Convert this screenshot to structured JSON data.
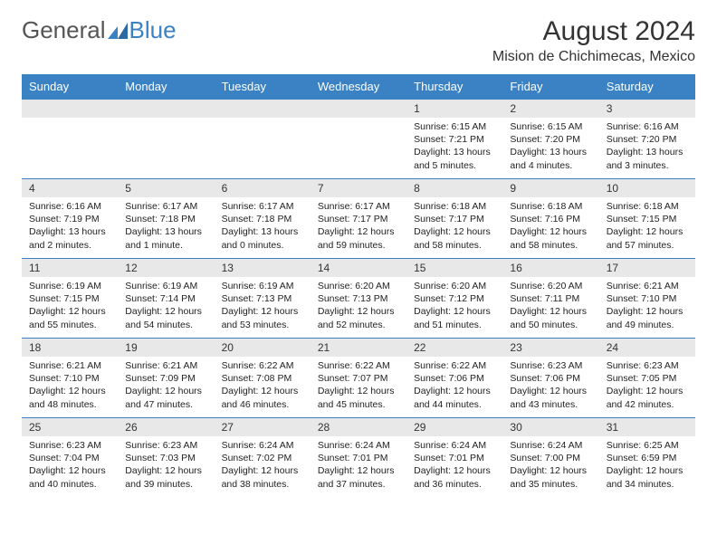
{
  "logo": {
    "general": "General",
    "blue": "Blue"
  },
  "title": "August 2024",
  "location": "Mision de Chichimecas, Mexico",
  "calendar": {
    "header_bg": "#3b82c4",
    "header_text_color": "#ffffff",
    "daynum_bg": "#e8e8e8",
    "border_color": "#3b82c4",
    "body_fontsize": 10.5,
    "header_fontsize": 13,
    "daynames": [
      "Sunday",
      "Monday",
      "Tuesday",
      "Wednesday",
      "Thursday",
      "Friday",
      "Saturday"
    ],
    "weeks": [
      [
        null,
        null,
        null,
        null,
        {
          "n": "1",
          "sunrise": "Sunrise: 6:15 AM",
          "sunset": "Sunset: 7:21 PM",
          "daylight": "Daylight: 13 hours and 5 minutes."
        },
        {
          "n": "2",
          "sunrise": "Sunrise: 6:15 AM",
          "sunset": "Sunset: 7:20 PM",
          "daylight": "Daylight: 13 hours and 4 minutes."
        },
        {
          "n": "3",
          "sunrise": "Sunrise: 6:16 AM",
          "sunset": "Sunset: 7:20 PM",
          "daylight": "Daylight: 13 hours and 3 minutes."
        }
      ],
      [
        {
          "n": "4",
          "sunrise": "Sunrise: 6:16 AM",
          "sunset": "Sunset: 7:19 PM",
          "daylight": "Daylight: 13 hours and 2 minutes."
        },
        {
          "n": "5",
          "sunrise": "Sunrise: 6:17 AM",
          "sunset": "Sunset: 7:18 PM",
          "daylight": "Daylight: 13 hours and 1 minute."
        },
        {
          "n": "6",
          "sunrise": "Sunrise: 6:17 AM",
          "sunset": "Sunset: 7:18 PM",
          "daylight": "Daylight: 13 hours and 0 minutes."
        },
        {
          "n": "7",
          "sunrise": "Sunrise: 6:17 AM",
          "sunset": "Sunset: 7:17 PM",
          "daylight": "Daylight: 12 hours and 59 minutes."
        },
        {
          "n": "8",
          "sunrise": "Sunrise: 6:18 AM",
          "sunset": "Sunset: 7:17 PM",
          "daylight": "Daylight: 12 hours and 58 minutes."
        },
        {
          "n": "9",
          "sunrise": "Sunrise: 6:18 AM",
          "sunset": "Sunset: 7:16 PM",
          "daylight": "Daylight: 12 hours and 58 minutes."
        },
        {
          "n": "10",
          "sunrise": "Sunrise: 6:18 AM",
          "sunset": "Sunset: 7:15 PM",
          "daylight": "Daylight: 12 hours and 57 minutes."
        }
      ],
      [
        {
          "n": "11",
          "sunrise": "Sunrise: 6:19 AM",
          "sunset": "Sunset: 7:15 PM",
          "daylight": "Daylight: 12 hours and 55 minutes."
        },
        {
          "n": "12",
          "sunrise": "Sunrise: 6:19 AM",
          "sunset": "Sunset: 7:14 PM",
          "daylight": "Daylight: 12 hours and 54 minutes."
        },
        {
          "n": "13",
          "sunrise": "Sunrise: 6:19 AM",
          "sunset": "Sunset: 7:13 PM",
          "daylight": "Daylight: 12 hours and 53 minutes."
        },
        {
          "n": "14",
          "sunrise": "Sunrise: 6:20 AM",
          "sunset": "Sunset: 7:13 PM",
          "daylight": "Daylight: 12 hours and 52 minutes."
        },
        {
          "n": "15",
          "sunrise": "Sunrise: 6:20 AM",
          "sunset": "Sunset: 7:12 PM",
          "daylight": "Daylight: 12 hours and 51 minutes."
        },
        {
          "n": "16",
          "sunrise": "Sunrise: 6:20 AM",
          "sunset": "Sunset: 7:11 PM",
          "daylight": "Daylight: 12 hours and 50 minutes."
        },
        {
          "n": "17",
          "sunrise": "Sunrise: 6:21 AM",
          "sunset": "Sunset: 7:10 PM",
          "daylight": "Daylight: 12 hours and 49 minutes."
        }
      ],
      [
        {
          "n": "18",
          "sunrise": "Sunrise: 6:21 AM",
          "sunset": "Sunset: 7:10 PM",
          "daylight": "Daylight: 12 hours and 48 minutes."
        },
        {
          "n": "19",
          "sunrise": "Sunrise: 6:21 AM",
          "sunset": "Sunset: 7:09 PM",
          "daylight": "Daylight: 12 hours and 47 minutes."
        },
        {
          "n": "20",
          "sunrise": "Sunrise: 6:22 AM",
          "sunset": "Sunset: 7:08 PM",
          "daylight": "Daylight: 12 hours and 46 minutes."
        },
        {
          "n": "21",
          "sunrise": "Sunrise: 6:22 AM",
          "sunset": "Sunset: 7:07 PM",
          "daylight": "Daylight: 12 hours and 45 minutes."
        },
        {
          "n": "22",
          "sunrise": "Sunrise: 6:22 AM",
          "sunset": "Sunset: 7:06 PM",
          "daylight": "Daylight: 12 hours and 44 minutes."
        },
        {
          "n": "23",
          "sunrise": "Sunrise: 6:23 AM",
          "sunset": "Sunset: 7:06 PM",
          "daylight": "Daylight: 12 hours and 43 minutes."
        },
        {
          "n": "24",
          "sunrise": "Sunrise: 6:23 AM",
          "sunset": "Sunset: 7:05 PM",
          "daylight": "Daylight: 12 hours and 42 minutes."
        }
      ],
      [
        {
          "n": "25",
          "sunrise": "Sunrise: 6:23 AM",
          "sunset": "Sunset: 7:04 PM",
          "daylight": "Daylight: 12 hours and 40 minutes."
        },
        {
          "n": "26",
          "sunrise": "Sunrise: 6:23 AM",
          "sunset": "Sunset: 7:03 PM",
          "daylight": "Daylight: 12 hours and 39 minutes."
        },
        {
          "n": "27",
          "sunrise": "Sunrise: 6:24 AM",
          "sunset": "Sunset: 7:02 PM",
          "daylight": "Daylight: 12 hours and 38 minutes."
        },
        {
          "n": "28",
          "sunrise": "Sunrise: 6:24 AM",
          "sunset": "Sunset: 7:01 PM",
          "daylight": "Daylight: 12 hours and 37 minutes."
        },
        {
          "n": "29",
          "sunrise": "Sunrise: 6:24 AM",
          "sunset": "Sunset: 7:01 PM",
          "daylight": "Daylight: 12 hours and 36 minutes."
        },
        {
          "n": "30",
          "sunrise": "Sunrise: 6:24 AM",
          "sunset": "Sunset: 7:00 PM",
          "daylight": "Daylight: 12 hours and 35 minutes."
        },
        {
          "n": "31",
          "sunrise": "Sunrise: 6:25 AM",
          "sunset": "Sunset: 6:59 PM",
          "daylight": "Daylight: 12 hours and 34 minutes."
        }
      ]
    ]
  }
}
